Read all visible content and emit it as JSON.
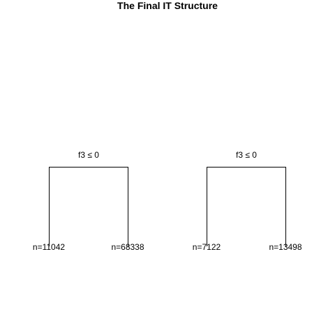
{
  "title": "The Final IT Structure",
  "trees": [
    {
      "split_label": "f3 ≤ 0",
      "leaves": [
        {
          "label": "n=11042"
        },
        {
          "label": "n=68338"
        }
      ]
    },
    {
      "split_label": "f3 ≤ 0",
      "leaves": [
        {
          "label": "n=7122"
        },
        {
          "label": "n=13498"
        }
      ]
    }
  ]
}
